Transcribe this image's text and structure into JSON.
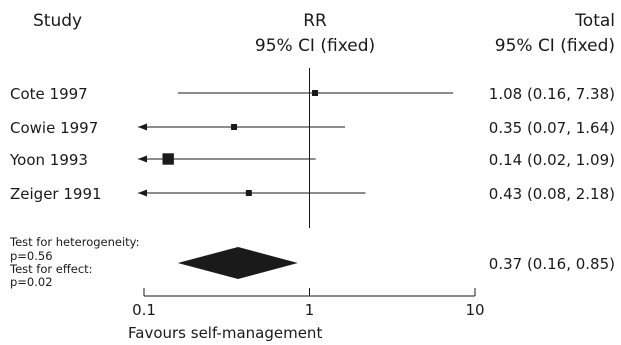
{
  "chart_data": {
    "type": "forest",
    "headers": {
      "study": "Study",
      "rr_line1": "RR",
      "rr_line2": "95% CI (fixed)",
      "total_line1": "Total",
      "total_line2": "95% CI (fixed)"
    },
    "scale": "log",
    "xlim": [
      0.1,
      10
    ],
    "null_value": 1,
    "x_ticks": [
      {
        "value": 0.1,
        "label": "0.1"
      },
      {
        "value": 1,
        "label": "1"
      },
      {
        "value": 10,
        "label": "10"
      }
    ],
    "xlabel": "Favours self-management",
    "studies": [
      {
        "name": "Cote 1997",
        "rr": 1.08,
        "lower": 0.16,
        "upper": 7.38,
        "text": "1.08 (0.16, 7.38)",
        "weight": 1.0
      },
      {
        "name": "Cowie 1997",
        "rr": 0.35,
        "lower": 0.07,
        "upper": 1.64,
        "text": "0.35 (0.07, 1.64)",
        "weight": 1.0
      },
      {
        "name": "Yoon 1993",
        "rr": 0.14,
        "lower": 0.02,
        "upper": 1.09,
        "text": "0.14 (0.02, 1.09)",
        "weight": 1.9
      },
      {
        "name": "Zeiger 1991",
        "rr": 0.43,
        "lower": 0.08,
        "upper": 2.18,
        "text": "0.43 (0.08, 2.18)",
        "weight": 1.0
      }
    ],
    "pooled": {
      "rr": 0.37,
      "lower": 0.16,
      "upper": 0.85,
      "text": "0.37 (0.16, 0.85)"
    },
    "stats": [
      "Test for heterogeneity:",
      "p=0.56",
      "Test for effect:",
      "p=0.02"
    ]
  }
}
